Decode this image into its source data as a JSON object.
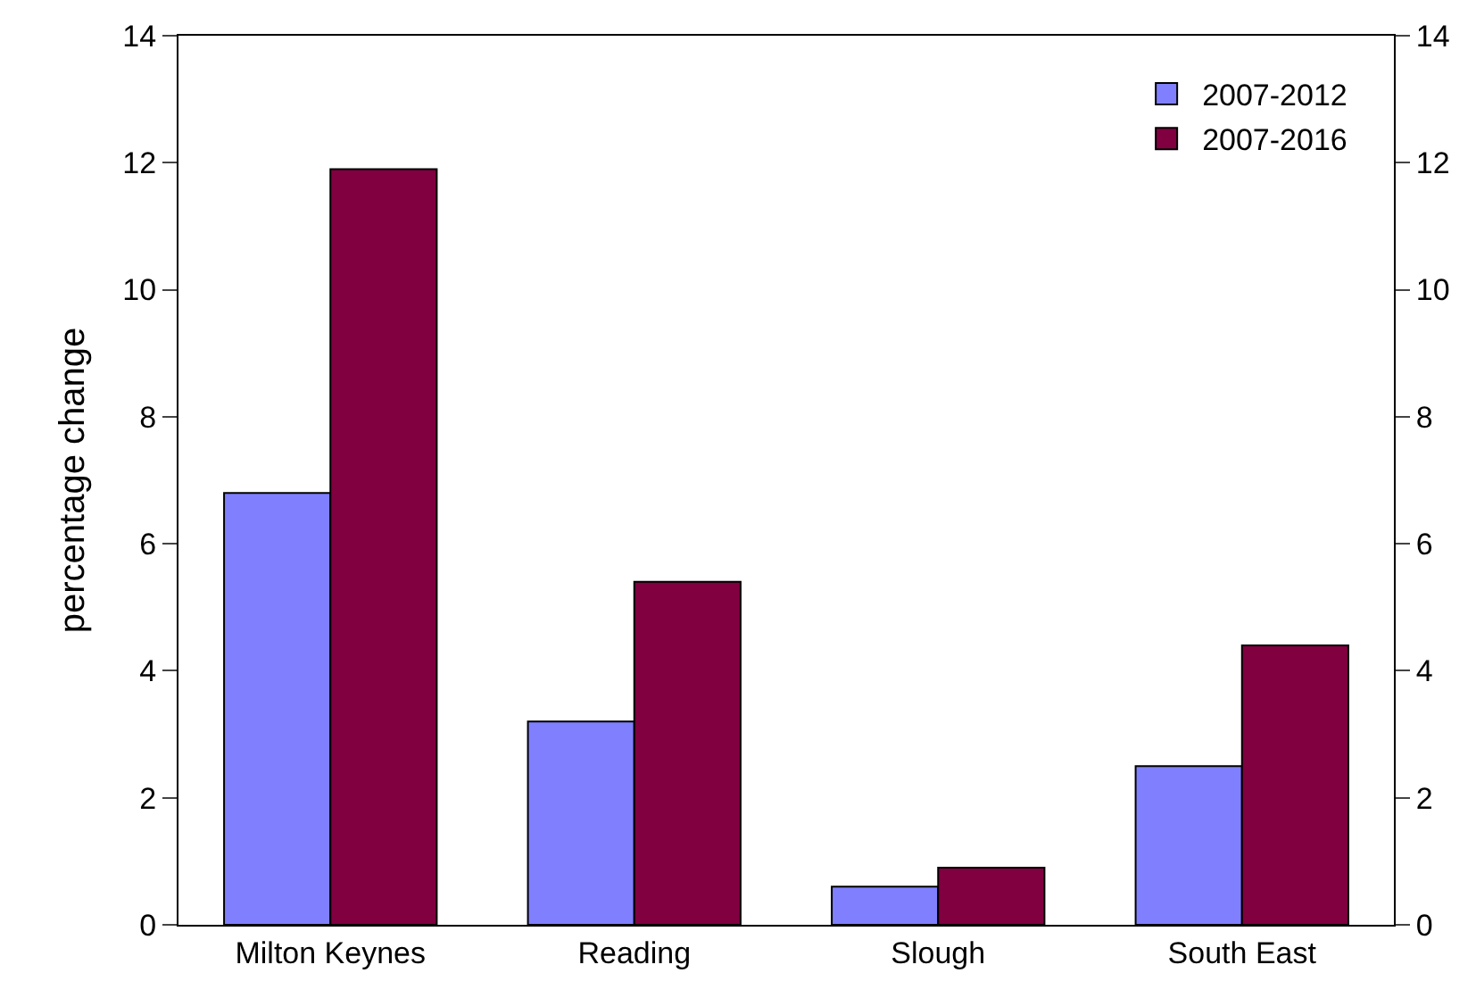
{
  "chart_data": {
    "type": "bar",
    "ylabel": "percentage change",
    "categories": [
      "Milton Keynes",
      "Reading",
      "Slough",
      "South East"
    ],
    "series": [
      {
        "name": "2007-2012",
        "color": "#8080ff",
        "values": [
          6.8,
          3.2,
          0.6,
          2.5
        ]
      },
      {
        "name": "2007-2016",
        "color": "#800040",
        "values": [
          11.9,
          5.4,
          0.9,
          4.4
        ]
      }
    ],
    "ylim": [
      0,
      14
    ],
    "yticks": [
      0,
      2,
      4,
      6,
      8,
      10,
      12,
      14
    ],
    "y2lim": [
      0,
      14
    ],
    "y2ticks": [
      0,
      2,
      4,
      6,
      8,
      10,
      12,
      14
    ],
    "legend": "top right"
  }
}
